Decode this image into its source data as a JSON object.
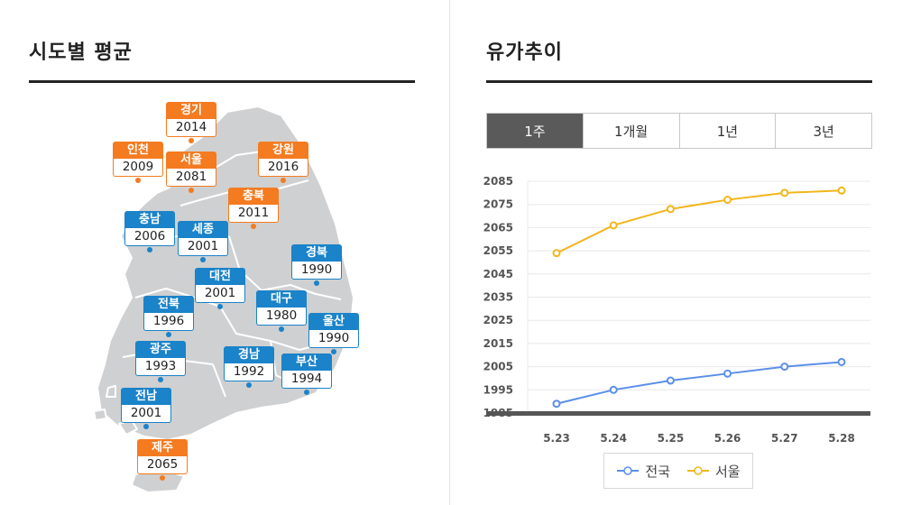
{
  "left": {
    "title": "시도별 평균",
    "regions": [
      {
        "name": "경기",
        "value": "2014",
        "color": "orange"
      },
      {
        "name": "인천",
        "value": "2009",
        "color": "orange"
      },
      {
        "name": "서울",
        "value": "2081",
        "color": "orange"
      },
      {
        "name": "강원",
        "value": "2016",
        "color": "orange"
      },
      {
        "name": "충북",
        "value": "2011",
        "color": "orange"
      },
      {
        "name": "충남",
        "value": "2006",
        "color": "blue"
      },
      {
        "name": "세종",
        "value": "2001",
        "color": "blue"
      },
      {
        "name": "경북",
        "value": "1990",
        "color": "blue"
      },
      {
        "name": "대전",
        "value": "2001",
        "color": "blue"
      },
      {
        "name": "대구",
        "value": "1980",
        "color": "blue"
      },
      {
        "name": "전북",
        "value": "1996",
        "color": "blue"
      },
      {
        "name": "울산",
        "value": "1990",
        "color": "blue"
      },
      {
        "name": "광주",
        "value": "1993",
        "color": "blue"
      },
      {
        "name": "경남",
        "value": "1992",
        "color": "blue"
      },
      {
        "name": "부산",
        "value": "1994",
        "color": "blue"
      },
      {
        "name": "전남",
        "value": "2001",
        "color": "blue"
      },
      {
        "name": "제주",
        "value": "2065",
        "color": "orange"
      }
    ]
  },
  "right": {
    "title": "유가추이",
    "tabs": [
      {
        "label": "1주",
        "active": true
      },
      {
        "label": "1개월",
        "active": false
      },
      {
        "label": "1년",
        "active": false
      },
      {
        "label": "3년",
        "active": false
      }
    ]
  },
  "colors": {
    "national": "#5b8fe8",
    "seoul": "#f2b61b",
    "orange": "#f47b20",
    "blue": "#1a83c9"
  },
  "chart_data": {
    "type": "line",
    "categories": [
      "5.23",
      "5.24",
      "5.25",
      "5.26",
      "5.27",
      "5.28"
    ],
    "series": [
      {
        "name": "전국",
        "values": [
          1989,
          1995,
          1999,
          2002,
          2005,
          2007
        ]
      },
      {
        "name": "서울",
        "values": [
          2054,
          2066,
          2073,
          2077,
          2080,
          2081
        ]
      }
    ],
    "yticks": [
      1985,
      1995,
      2005,
      2015,
      2025,
      2035,
      2045,
      2055,
      2065,
      2075,
      2085
    ],
    "ylim": [
      1985,
      2085
    ],
    "grid": true,
    "legend": "bottom"
  }
}
